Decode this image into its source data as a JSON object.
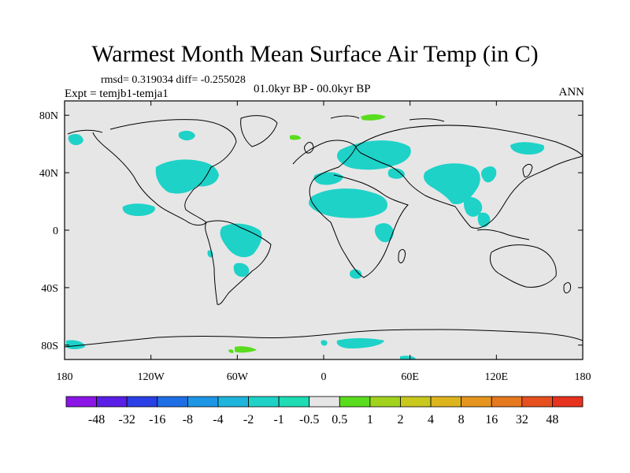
{
  "title": "Warmest Month Mean Surface Air Temp (in C)",
  "stats": "rmsd= 0.319034 diff= -0.255028",
  "experiment": "Expt = temjb1-temja1",
  "period": "01.0kyr BP - 00.0kyr BP",
  "season": "ANN",
  "axes": {
    "x_ticks": [
      "180",
      "120W",
      "60W",
      "0",
      "60E",
      "120E",
      "180"
    ],
    "y_ticks": [
      "80N",
      "40N",
      "0",
      "40S",
      "80S"
    ]
  },
  "colorbar": {
    "labels": [
      "-48",
      "-32",
      "-16",
      "-8",
      "-4",
      "-2",
      "-1",
      "-0.5",
      "0.5",
      "1",
      "2",
      "4",
      "8",
      "16",
      "32",
      "48"
    ],
    "colors": [
      "#8a15e6",
      "#5a1ee6",
      "#2a3fe6",
      "#1e6fe6",
      "#1e96e6",
      "#1eb4dc",
      "#1ed2c8",
      "#1edcb4",
      "#e6e6e6",
      "#5adc1e",
      "#a0d21e",
      "#c8c81e",
      "#dcb41e",
      "#e6961e",
      "#e6781e",
      "#e6501e",
      "#e6321e"
    ]
  },
  "map_colors": {
    "background": "#e6e6e6",
    "cool_anomaly": "#1ed2c8",
    "warm_anomaly": "#5adc1e",
    "coastline": "#000000"
  },
  "chart_data": {
    "type": "heatmap",
    "title": "Warmest Month Mean Surface Air Temp (in C)",
    "x_range": [
      -180,
      180
    ],
    "y_range": [
      -90,
      90
    ],
    "x_ticks": [
      -180,
      -120,
      -60,
      0,
      60,
      120,
      180
    ],
    "y_ticks": [
      80,
      40,
      0,
      -40,
      -80
    ],
    "contour_levels": [
      -48,
      -32,
      -16,
      -8,
      -4,
      -2,
      -1,
      -0.5,
      0.5,
      1,
      2,
      4,
      8,
      16,
      32,
      48
    ]
  }
}
